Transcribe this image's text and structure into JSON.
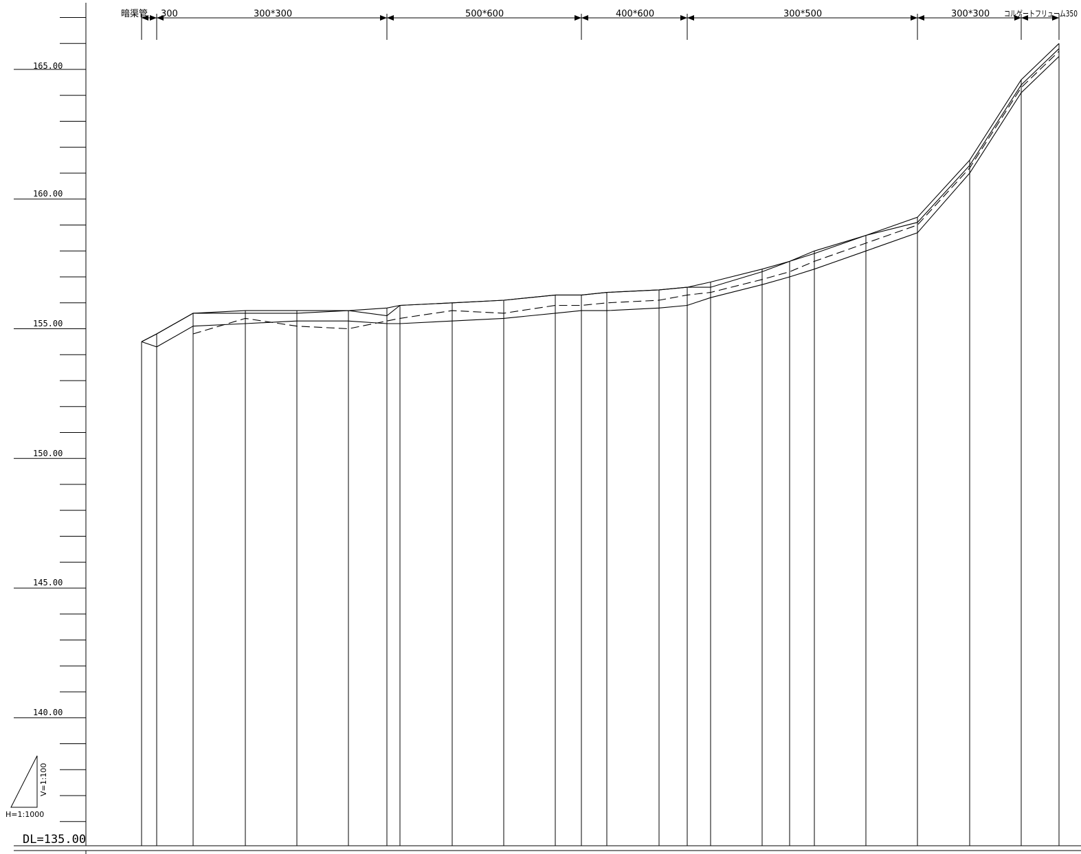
{
  "elevation_labels": [
    "165.00",
    "160.00",
    "155.00",
    "150.00",
    "145.00",
    "140.00"
  ],
  "datum_label": "DL=135.00",
  "scale": {
    "horizontal": "H=1:1000",
    "vertical": "V=1:100"
  },
  "sections": [
    "暗渠管",
    "300",
    "300*300",
    "500*600",
    "400*600",
    "300*500",
    "300*300",
    "コルゲートフリューム350"
  ],
  "chart_data": {
    "type": "line",
    "datum": 135.0,
    "y_ticks_major": [
      140.0,
      145.0,
      150.0,
      155.0,
      160.0,
      165.0
    ],
    "y_tick_interval": 1.0,
    "series": [
      {
        "station": 0,
        "ground": 154.5,
        "top": 154.5,
        "flow": null,
        "bottom": 154.5
      },
      {
        "station": 1,
        "ground": 154.8,
        "top": 154.8,
        "flow": null,
        "bottom": 154.3
      },
      {
        "station": 2,
        "ground": 155.6,
        "top": 155.6,
        "flow": 154.8,
        "bottom": 155.1
      },
      {
        "station": 3,
        "ground": 155.7,
        "top": 155.6,
        "flow": 155.4,
        "bottom": 155.2
      },
      {
        "station": 4,
        "ground": 155.7,
        "top": 155.6,
        "flow": 155.1,
        "bottom": 155.3
      },
      {
        "station": 5,
        "ground": 155.7,
        "top": 155.7,
        "flow": 155.0,
        "bottom": 155.3
      },
      {
        "station": 6,
        "ground": 155.8,
        "top": 155.5,
        "flow": 155.3,
        "bottom": 155.2
      },
      {
        "station": 7,
        "ground": 155.9,
        "top": 155.9,
        "flow": 155.4,
        "bottom": 155.2
      },
      {
        "station": 8,
        "ground": 156.0,
        "top": 156.0,
        "flow": 155.7,
        "bottom": 155.3
      },
      {
        "station": 9,
        "ground": 156.1,
        "top": 156.1,
        "flow": 155.6,
        "bottom": 155.4
      },
      {
        "station": 10,
        "ground": 156.3,
        "top": 156.3,
        "flow": 155.9,
        "bottom": 155.6
      },
      {
        "station": 11,
        "ground": 156.3,
        "top": 156.3,
        "flow": 155.9,
        "bottom": 155.7
      },
      {
        "station": 12,
        "ground": 156.4,
        "top": 156.4,
        "flow": 156.0,
        "bottom": 155.7
      },
      {
        "station": 13,
        "ground": 156.5,
        "top": 156.5,
        "flow": 156.1,
        "bottom": 155.8
      },
      {
        "station": 14,
        "ground": 156.6,
        "top": 156.6,
        "flow": 156.3,
        "bottom": 155.9
      },
      {
        "station": 15,
        "ground": 156.8,
        "top": 156.6,
        "flow": 156.4,
        "bottom": 156.2
      },
      {
        "station": 16,
        "ground": 157.3,
        "top": 157.2,
        "flow": 156.9,
        "bottom": 156.7
      },
      {
        "station": 17,
        "ground": 157.6,
        "top": 157.6,
        "flow": 157.2,
        "bottom": 157.0
      },
      {
        "station": 18,
        "ground": 158.0,
        "top": 157.9,
        "flow": 157.6,
        "bottom": 157.3
      },
      {
        "station": 19,
        "ground": 158.6,
        "top": 158.6,
        "flow": 158.3,
        "bottom": 158.0
      },
      {
        "station": 20,
        "ground": 159.3,
        "top": 159.1,
        "flow": 159.0,
        "bottom": 158.7
      },
      {
        "station": 21,
        "ground": 161.5,
        "top": 161.3,
        "flow": 161.2,
        "bottom": 161.0
      },
      {
        "station": 22,
        "ground": 164.6,
        "top": 164.4,
        "flow": 164.3,
        "bottom": 164.1
      },
      {
        "station": 23,
        "ground": 166.0,
        "top": 165.8,
        "flow": 165.7,
        "bottom": 165.5
      }
    ]
  }
}
